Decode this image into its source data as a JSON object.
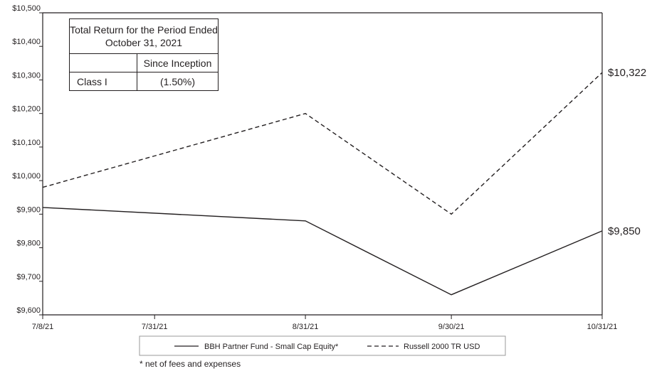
{
  "chart_data": {
    "type": "line",
    "x": [
      "7/8/21",
      "8/31/21",
      "9/30/21",
      "10/31/21"
    ],
    "x_tick_labels": [
      "7/8/21",
      "7/31/21",
      "8/31/21",
      "9/30/21",
      "10/31/21"
    ],
    "y_tick_labels": [
      "$9,600",
      "$9,700",
      "$9,800",
      "$9,900",
      "$10,000",
      "$10,100",
      "$10,200",
      "$10,300",
      "$10,400",
      "$10,500"
    ],
    "ylim": [
      9600,
      10500
    ],
    "series": [
      {
        "name": "BBH Partner Fund - Small Cap Equity*",
        "style": "solid",
        "values": [
          9920,
          9880,
          9660,
          9850
        ],
        "end_label": "$9,850"
      },
      {
        "name": "Russell 2000 TR USD",
        "style": "dashed",
        "values": [
          9980,
          10200,
          9900,
          10322
        ],
        "end_label": "$10,322"
      }
    ],
    "grid": false,
    "legend_position": "bottom"
  },
  "table": {
    "title": "Total Return for the Period Ended October 31, 2021",
    "column_header": "Since Inception",
    "row_label": "Class I",
    "row_value": "(1.50%)"
  },
  "footnote": "* net of fees and expenses",
  "colors": {
    "line": "#231f20",
    "legend_border": "#9a9a9a"
  }
}
